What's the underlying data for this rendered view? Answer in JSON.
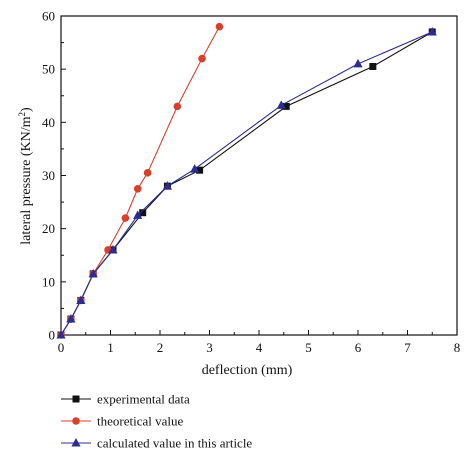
{
  "chart_data": {
    "type": "line",
    "xlabel": "deflection (mm)",
    "ylabel": "lateral pressure (KN/m²)",
    "ylabel_parts": {
      "main": "lateral pressure (KN/m",
      "sup": "2",
      "end": ")"
    },
    "xlim": [
      0,
      8
    ],
    "ylim": [
      0,
      60
    ],
    "x_ticks": [
      "0",
      "1",
      "2",
      "3",
      "4",
      "5",
      "6",
      "7",
      "8"
    ],
    "y_ticks": [
      "0",
      "10",
      "20",
      "30",
      "40",
      "50",
      "60"
    ],
    "grid": false,
    "legend_position": "bottom",
    "series": [
      {
        "name": "experimental data",
        "marker": "square",
        "color": "#111111",
        "line_color": "#111111",
        "points": [
          {
            "x": 0.0,
            "y": 0.0
          },
          {
            "x": 0.2,
            "y": 3.0
          },
          {
            "x": 0.4,
            "y": 6.5
          },
          {
            "x": 0.65,
            "y": 11.5
          },
          {
            "x": 1.05,
            "y": 16.0
          },
          {
            "x": 1.65,
            "y": 23.0
          },
          {
            "x": 2.15,
            "y": 28.0
          },
          {
            "x": 2.8,
            "y": 31.0
          },
          {
            "x": 4.55,
            "y": 43.0
          },
          {
            "x": 6.3,
            "y": 50.5
          },
          {
            "x": 7.5,
            "y": 57.0
          }
        ]
      },
      {
        "name": "theoretical value",
        "marker": "circle",
        "color": "#d9402a",
        "line_color": "#d9402a",
        "points": [
          {
            "x": 0.0,
            "y": 0.0
          },
          {
            "x": 0.2,
            "y": 3.0
          },
          {
            "x": 0.4,
            "y": 6.5
          },
          {
            "x": 0.65,
            "y": 11.5
          },
          {
            "x": 0.95,
            "y": 16.0
          },
          {
            "x": 1.3,
            "y": 22.0
          },
          {
            "x": 1.55,
            "y": 27.5
          },
          {
            "x": 1.75,
            "y": 30.5
          },
          {
            "x": 2.35,
            "y": 43.0
          },
          {
            "x": 2.85,
            "y": 52.0
          },
          {
            "x": 3.2,
            "y": 58.0
          }
        ]
      },
      {
        "name": "calculated value in this article",
        "marker": "triangle",
        "color": "#2b2d8f",
        "line_color": "#2b2d8f",
        "points": [
          {
            "x": 0.0,
            "y": 0.0
          },
          {
            "x": 0.2,
            "y": 3.0
          },
          {
            "x": 0.4,
            "y": 6.5
          },
          {
            "x": 0.65,
            "y": 11.5
          },
          {
            "x": 1.05,
            "y": 16.0
          },
          {
            "x": 1.55,
            "y": 22.5
          },
          {
            "x": 2.15,
            "y": 28.0
          },
          {
            "x": 2.7,
            "y": 31.2
          },
          {
            "x": 4.45,
            "y": 43.2
          },
          {
            "x": 6.0,
            "y": 51.0
          },
          {
            "x": 7.5,
            "y": 57.0
          }
        ]
      }
    ]
  }
}
